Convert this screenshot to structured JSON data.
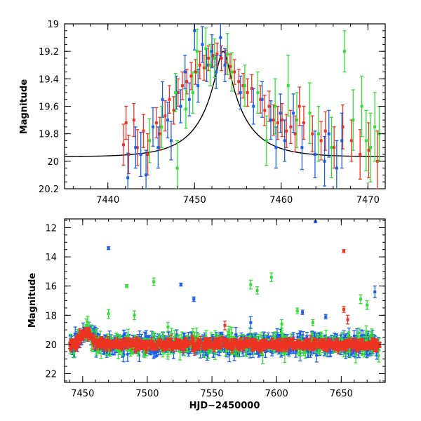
{
  "chart_data": [
    {
      "type": "scatter",
      "title": "",
      "xlabel": "",
      "ylabel": "Magnitude",
      "xlim": [
        7435,
        7472
      ],
      "ylim": [
        20.2,
        19.0
      ],
      "y_inverted": true,
      "x_major_ticks": [
        7440,
        7450,
        7460,
        7470
      ],
      "x_tick_labels": [
        "7440",
        "7450",
        "7460",
        "7470"
      ],
      "y_major_ticks": [
        19.0,
        19.2,
        19.4,
        19.6,
        19.8,
        20.0,
        20.2
      ],
      "y_tick_labels": [
        "19",
        "19.2",
        "19.4",
        "19.6",
        "19.8",
        "20",
        "20.2"
      ],
      "colors": {
        "blue": "#1a5fe8",
        "green": "#33dd33",
        "red": "#ee3322",
        "model": "#000000"
      },
      "model_curve": {
        "description_type": "line",
        "peak_x": 7453.3,
        "peak_y": 19.2,
        "baseline_y": 19.97,
        "tE": 5.0,
        "u0": 0.14
      },
      "series": [
        {
          "color_key": "red",
          "points": [
            [
              7441.8,
              19.88,
              0.15
            ],
            [
              7442.1,
              19.72,
              0.12
            ],
            [
              7442.4,
              19.95,
              0.14
            ],
            [
              7443.0,
              19.7,
              0.12
            ],
            [
              7443.4,
              19.9,
              0.13
            ],
            [
              7444.1,
              19.78,
              0.12
            ],
            [
              7444.6,
              19.95,
              0.15
            ],
            [
              7445.6,
              19.72,
              0.11
            ],
            [
              7446.0,
              19.8,
              0.12
            ],
            [
              7446.6,
              19.67,
              0.11
            ],
            [
              7447.1,
              19.55,
              0.1
            ],
            [
              7447.6,
              19.63,
              0.1
            ],
            [
              7448.1,
              19.5,
              0.1
            ],
            [
              7448.6,
              19.45,
              0.1
            ],
            [
              7449.1,
              19.42,
              0.09
            ],
            [
              7449.6,
              19.38,
              0.1
            ],
            [
              7450.1,
              19.35,
              0.09
            ],
            [
              7450.6,
              19.3,
              0.1
            ],
            [
              7451.1,
              19.32,
              0.09
            ],
            [
              7451.6,
              19.25,
              0.09
            ],
            [
              7452.1,
              19.23,
              0.08
            ],
            [
              7452.6,
              19.22,
              0.08
            ],
            [
              7453.1,
              19.25,
              0.09
            ],
            [
              7453.6,
              19.28,
              0.09
            ],
            [
              7454.1,
              19.31,
              0.09
            ],
            [
              7454.6,
              19.35,
              0.09
            ],
            [
              7455.1,
              19.42,
              0.09
            ],
            [
              7455.6,
              19.45,
              0.09
            ],
            [
              7456.1,
              19.5,
              0.1
            ],
            [
              7456.6,
              19.47,
              0.1
            ],
            [
              7457.6,
              19.55,
              0.1
            ],
            [
              7458.1,
              19.63,
              0.11
            ],
            [
              7458.6,
              19.6,
              0.11
            ],
            [
              7459.1,
              19.7,
              0.11
            ],
            [
              7459.6,
              19.72,
              0.12
            ],
            [
              7460.1,
              19.7,
              0.12
            ],
            [
              7460.6,
              19.78,
              0.12
            ],
            [
              7461.1,
              19.75,
              0.12
            ],
            [
              7461.6,
              19.8,
              0.13
            ],
            [
              7462.1,
              19.6,
              0.14
            ],
            [
              7462.6,
              19.72,
              0.12
            ],
            [
              7463.6,
              19.8,
              0.13
            ],
            [
              7464.6,
              19.85,
              0.14
            ],
            [
              7465.1,
              19.78,
              0.14
            ],
            [
              7466.1,
              19.9,
              0.15
            ],
            [
              7467.1,
              19.75,
              0.16
            ],
            [
              7468.1,
              19.85,
              0.15
            ],
            [
              7469.1,
              19.95,
              0.18
            ],
            [
              7470.1,
              19.92,
              0.2
            ],
            [
              7471.1,
              20.0,
              0.22
            ]
          ]
        },
        {
          "color_key": "blue",
          "points": [
            [
              7442.3,
              20.12,
              0.18
            ],
            [
              7443.2,
              19.9,
              0.15
            ],
            [
              7443.8,
              19.95,
              0.16
            ],
            [
              7444.4,
              20.1,
              0.18
            ],
            [
              7445.2,
              19.75,
              0.14
            ],
            [
              7445.8,
              19.9,
              0.15
            ],
            [
              7446.3,
              19.55,
              0.13
            ],
            [
              7446.9,
              19.7,
              0.13
            ],
            [
              7447.3,
              19.85,
              0.14
            ],
            [
              7447.9,
              19.5,
              0.12
            ],
            [
              7448.4,
              19.6,
              0.12
            ],
            [
              7448.9,
              19.35,
              0.12
            ],
            [
              7449.4,
              19.55,
              0.12
            ],
            [
              7450.0,
              19.05,
              0.14
            ],
            [
              7450.4,
              19.45,
              0.12
            ],
            [
              7450.9,
              19.15,
              0.13
            ],
            [
              7451.4,
              19.3,
              0.12
            ],
            [
              7452.0,
              19.2,
              0.12
            ],
            [
              7452.5,
              19.35,
              0.12
            ],
            [
              7453.0,
              19.1,
              0.13
            ],
            [
              7453.5,
              19.3,
              0.12
            ],
            [
              7455.3,
              19.5,
              0.12
            ],
            [
              7456.8,
              19.6,
              0.13
            ],
            [
              7457.8,
              19.55,
              0.13
            ],
            [
              7458.8,
              19.7,
              0.14
            ],
            [
              7459.4,
              19.9,
              0.15
            ],
            [
              7459.9,
              19.65,
              0.14
            ],
            [
              7460.4,
              19.85,
              0.15
            ],
            [
              7461.4,
              19.65,
              0.14
            ],
            [
              7462.4,
              19.9,
              0.16
            ],
            [
              7463.9,
              19.95,
              0.17
            ],
            [
              7465.0,
              20.0,
              0.18
            ],
            [
              7465.5,
              19.8,
              0.17
            ],
            [
              7466.4,
              20.05,
              0.2
            ],
            [
              7467.0,
              19.85,
              0.2
            ]
          ]
        },
        {
          "color_key": "green",
          "points": [
            [
              7444.8,
              19.85,
              0.16
            ],
            [
              7446.2,
              19.75,
              0.15
            ],
            [
              7447.8,
              19.5,
              0.14
            ],
            [
              7449.0,
              19.62,
              0.14
            ],
            [
              7449.8,
              19.5,
              0.15
            ],
            [
              7450.3,
              19.2,
              0.16
            ],
            [
              7451.3,
              19.18,
              0.15
            ],
            [
              7451.8,
              19.3,
              0.15
            ],
            [
              7452.3,
              19.25,
              0.14
            ],
            [
              7454.3,
              19.35,
              0.14
            ],
            [
              7455.8,
              19.45,
              0.15
            ],
            [
              7457.3,
              19.5,
              0.15
            ],
            [
              7458.3,
              19.85,
              0.18
            ],
            [
              7459.3,
              19.6,
              0.2
            ],
            [
              7460.8,
              19.45,
              0.22
            ],
            [
              7461.8,
              19.7,
              0.2
            ],
            [
              7463.3,
              19.65,
              0.22
            ],
            [
              7464.3,
              19.8,
              0.2
            ],
            [
              7465.8,
              19.9,
              0.22
            ],
            [
              7467.3,
              19.2,
              0.15
            ],
            [
              7468.3,
              19.7,
              0.22
            ],
            [
              7469.3,
              19.6,
              0.22
            ],
            [
              7469.8,
              19.85,
              0.22
            ],
            [
              7470.3,
              19.9,
              0.25
            ],
            [
              7470.8,
              19.75,
              0.25
            ],
            [
              7471.3,
              19.8,
              0.2
            ],
            [
              7448.0,
              20.05,
              0.2
            ],
            [
              7453.8,
              19.22,
              0.15
            ]
          ]
        }
      ]
    },
    {
      "type": "scatter",
      "title": "",
      "xlabel": "HJD−2450000",
      "ylabel": "Magnitude",
      "xlim": [
        7436,
        7684
      ],
      "ylim": [
        22.6,
        11.4
      ],
      "y_inverted": true,
      "x_major_ticks": [
        7450,
        7500,
        7550,
        7600,
        7650
      ],
      "x_tick_labels": [
        "7450",
        "7500",
        "7550",
        "7600",
        "7650"
      ],
      "y_major_ticks": [
        12,
        14,
        16,
        18,
        20,
        22
      ],
      "y_tick_labels": [
        "12",
        "14",
        "16",
        "18",
        "20",
        "22"
      ],
      "colors": {
        "blue": "#1a5fe8",
        "green": "#33dd33",
        "red": "#ee3322"
      },
      "baseline_mag": 20.0,
      "event_peak": {
        "x": 7453,
        "y": 19.2
      },
      "outliers": [
        {
          "color_key": "blue",
          "x": 7630,
          "y": 11.6,
          "err": 0.05
        },
        {
          "color_key": "blue",
          "x": 7470,
          "y": 13.4,
          "err": 0.1
        },
        {
          "color_key": "red",
          "x": 7652,
          "y": 13.6,
          "err": 0.1
        },
        {
          "color_key": "blue",
          "x": 7526,
          "y": 15.9,
          "err": 0.1
        },
        {
          "color_key": "green",
          "x": 7484,
          "y": 16.0,
          "err": 0.1
        },
        {
          "color_key": "green",
          "x": 7505,
          "y": 15.7,
          "err": 0.25
        },
        {
          "color_key": "green",
          "x": 7580,
          "y": 15.9,
          "err": 0.3
        },
        {
          "color_key": "green",
          "x": 7585,
          "y": 16.3,
          "err": 0.25
        },
        {
          "color_key": "green",
          "x": 7596,
          "y": 15.4,
          "err": 0.3
        },
        {
          "color_key": "blue",
          "x": 7536,
          "y": 16.9,
          "err": 0.15
        },
        {
          "color_key": "blue",
          "x": 7676,
          "y": 16.4,
          "err": 0.4
        },
        {
          "color_key": "green",
          "x": 7665,
          "y": 16.9,
          "err": 0.3
        },
        {
          "color_key": "red",
          "x": 7652,
          "y": 17.6,
          "err": 0.2
        },
        {
          "color_key": "green",
          "x": 7470,
          "y": 17.9,
          "err": 0.3
        },
        {
          "color_key": "green",
          "x": 7490,
          "y": 18.0,
          "err": 0.3
        },
        {
          "color_key": "blue",
          "x": 7620,
          "y": 17.8,
          "err": 0.15
        },
        {
          "color_key": "green",
          "x": 7616,
          "y": 17.7,
          "err": 0.2
        },
        {
          "color_key": "blue",
          "x": 7638,
          "y": 18.1,
          "err": 0.15
        },
        {
          "color_key": "green",
          "x": 7628,
          "y": 18.5,
          "err": 0.2
        },
        {
          "color_key": "red",
          "x": 7655,
          "y": 18.3,
          "err": 0.3
        },
        {
          "color_key": "green",
          "x": 7670,
          "y": 17.3,
          "err": 0.3
        },
        {
          "color_key": "red",
          "x": 7560,
          "y": 18.7,
          "err": 0.3
        },
        {
          "color_key": "green",
          "x": 7516,
          "y": 18.8,
          "err": 0.3
        },
        {
          "color_key": "blue",
          "x": 7580,
          "y": 18.5,
          "err": 0.4
        },
        {
          "color_key": "green",
          "x": 7604,
          "y": 18.6,
          "err": 0.3
        }
      ]
    }
  ]
}
